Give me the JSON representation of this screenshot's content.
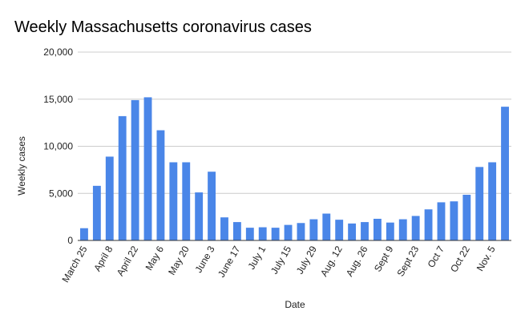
{
  "chart_data": {
    "type": "bar",
    "title": "Weekly Massachusetts coronavirus cases",
    "xlabel": "Date",
    "ylabel": "Weekly cases",
    "ylim": [
      0,
      20000
    ],
    "yticks": [
      "0",
      "5,000",
      "10,000",
      "15,000",
      "20,000"
    ],
    "grid": true,
    "bar_color": "#4a86e8",
    "categories": [
      "March 25",
      "",
      "April 8",
      "",
      "April 22",
      "",
      "May 6",
      "",
      "May 20",
      "",
      "June 3",
      "",
      "June 17",
      "",
      "July 1",
      "",
      "July 15",
      "",
      "July 29",
      "",
      "Aug. 12",
      "",
      "Aug. 26",
      "",
      "Sept 9",
      "",
      "Sept 23",
      "",
      "Oct 7",
      "",
      "Oct 22",
      "",
      "Nov. 5",
      ""
    ],
    "values": [
      1300,
      5800,
      8900,
      13200,
      14900,
      15200,
      11700,
      8300,
      8300,
      5100,
      7300,
      2450,
      1950,
      1350,
      1400,
      1350,
      1650,
      1850,
      2250,
      2850,
      2200,
      1800,
      1950,
      2300,
      1900,
      2250,
      2600,
      3300,
      4050,
      4150,
      4850,
      7800,
      8300,
      14200
    ]
  }
}
